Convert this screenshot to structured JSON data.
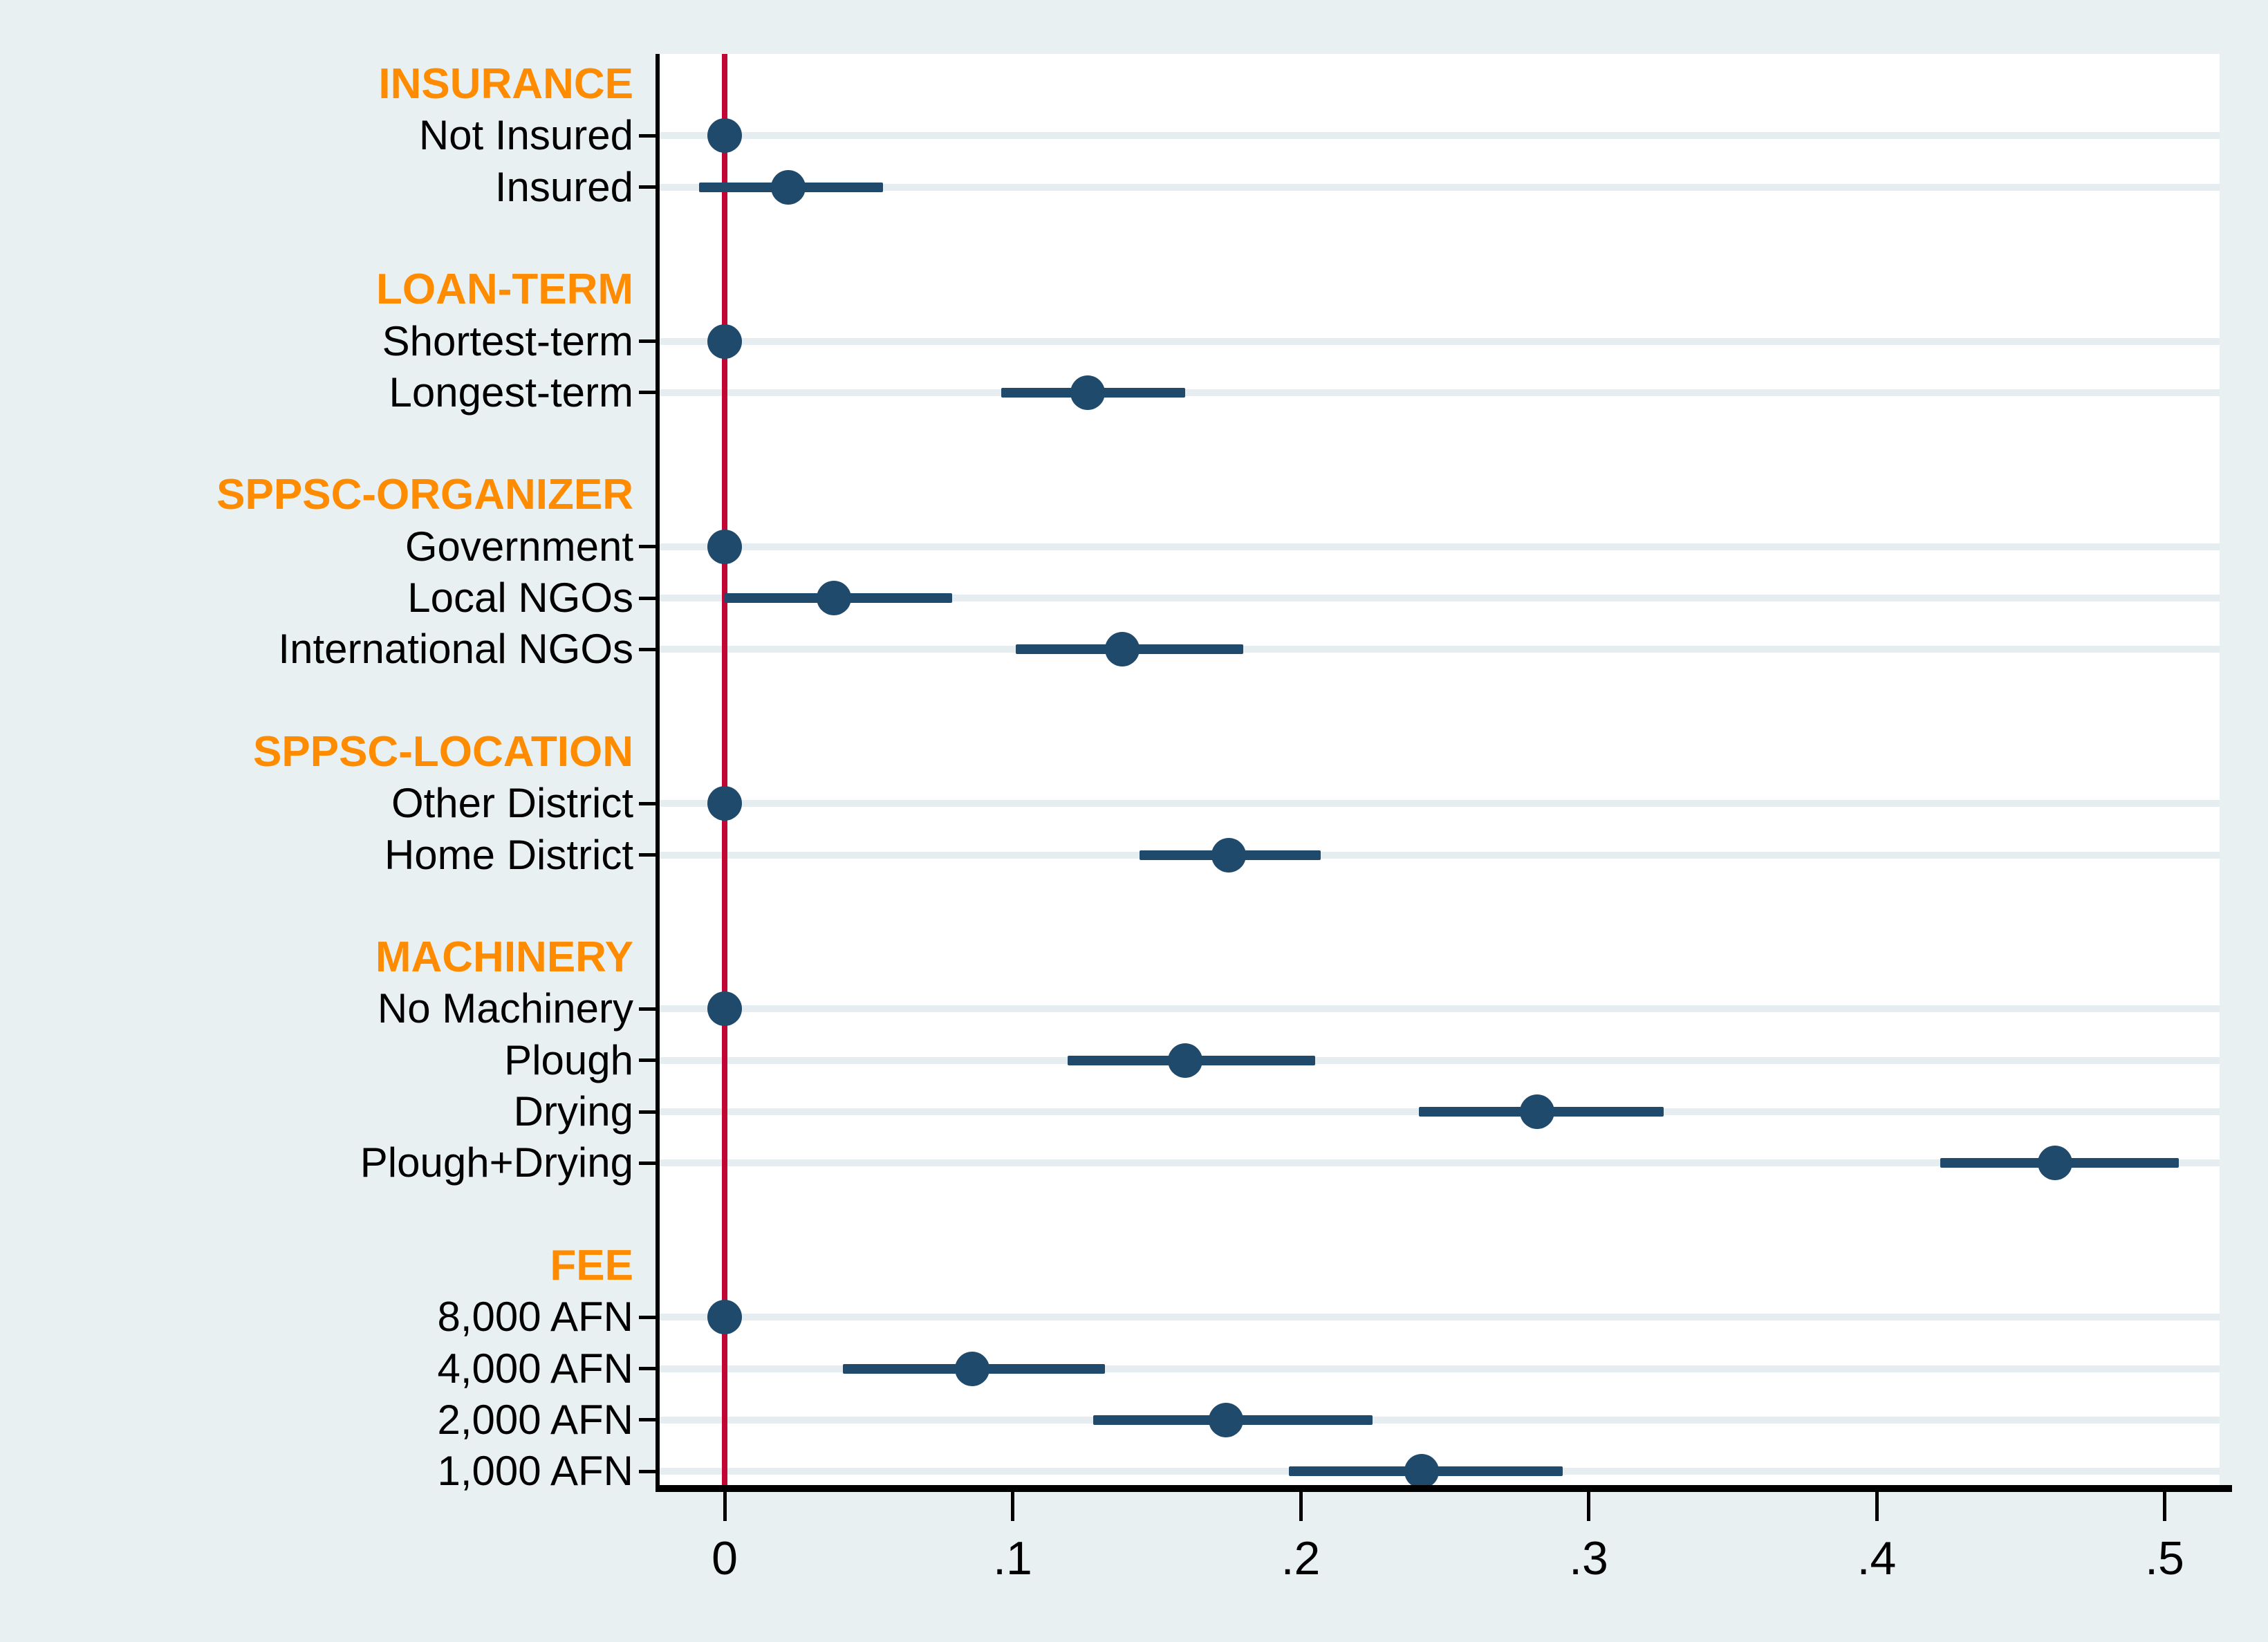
{
  "chart_data": {
    "type": "scatter",
    "subtype": "coefficient-forest-plot",
    "title": "",
    "xlabel": "",
    "ylabel": "",
    "xlim": [
      -0.023,
      0.518
    ],
    "grid": "horizontal-bands-on-item-rows",
    "legend": "none",
    "x_ticks": [
      {
        "value": 0.0,
        "label": "0"
      },
      {
        "value": 0.1,
        "label": ".1"
      },
      {
        "value": 0.2,
        "label": ".2"
      },
      {
        "value": 0.3,
        "label": ".3"
      },
      {
        "value": 0.4,
        "label": ".4"
      },
      {
        "value": 0.5,
        "label": ".5"
      }
    ],
    "zero_line_value": 0,
    "groups": [
      {
        "header": "INSURANCE",
        "items": [
          {
            "label": "Not Insured",
            "estimate": 0.0,
            "ci_low": null,
            "ci_high": null
          },
          {
            "label": "Insured",
            "estimate": 0.022,
            "ci_low": -0.009,
            "ci_high": 0.055
          }
        ]
      },
      {
        "header": "LOAN-TERM",
        "items": [
          {
            "label": "Shortest-term",
            "estimate": 0.0,
            "ci_low": null,
            "ci_high": null
          },
          {
            "label": "Longest-term",
            "estimate": 0.126,
            "ci_low": 0.096,
            "ci_high": 0.16
          }
        ]
      },
      {
        "header": "SPPSC-ORGANIZER",
        "items": [
          {
            "label": "Government",
            "estimate": 0.0,
            "ci_low": null,
            "ci_high": null
          },
          {
            "label": "Local NGOs",
            "estimate": 0.038,
            "ci_low": 0.0,
            "ci_high": 0.079
          },
          {
            "label": "International NGOs",
            "estimate": 0.138,
            "ci_low": 0.101,
            "ci_high": 0.18
          }
        ]
      },
      {
        "header": "SPPSC-LOCATION",
        "items": [
          {
            "label": "Other District",
            "estimate": 0.0,
            "ci_low": null,
            "ci_high": null
          },
          {
            "label": "Home District",
            "estimate": 0.175,
            "ci_low": 0.144,
            "ci_high": 0.207
          }
        ]
      },
      {
        "header": "MACHINERY",
        "items": [
          {
            "label": "No Machinery",
            "estimate": 0.0,
            "ci_low": null,
            "ci_high": null
          },
          {
            "label": "Plough",
            "estimate": 0.16,
            "ci_low": 0.119,
            "ci_high": 0.205
          },
          {
            "label": "Drying",
            "estimate": 0.282,
            "ci_low": 0.241,
            "ci_high": 0.326
          },
          {
            "label": "Plough+Drying",
            "estimate": 0.462,
            "ci_low": 0.422,
            "ci_high": 0.505
          }
        ]
      },
      {
        "header": "FEE",
        "items": [
          {
            "label": "8,000 AFN",
            "estimate": 0.0,
            "ci_low": null,
            "ci_high": null
          },
          {
            "label": "4,000 AFN",
            "estimate": 0.086,
            "ci_low": 0.041,
            "ci_high": 0.132
          },
          {
            "label": "2,000 AFN",
            "estimate": 0.174,
            "ci_low": 0.128,
            "ci_high": 0.225
          },
          {
            "label": "1,000 AFN",
            "estimate": 0.242,
            "ci_low": 0.196,
            "ci_high": 0.291
          }
        ]
      }
    ],
    "colors": {
      "marker": "#1f4a6b",
      "ci_line": "#1f4a6b",
      "zero_line": "#c10534",
      "group_header_text": "#ff8c00",
      "item_label_text": "#000000",
      "axis": "#000000",
      "background": "#e9f0f2",
      "plot_background": "#ffffff",
      "gridline": "#e6edf0"
    }
  }
}
